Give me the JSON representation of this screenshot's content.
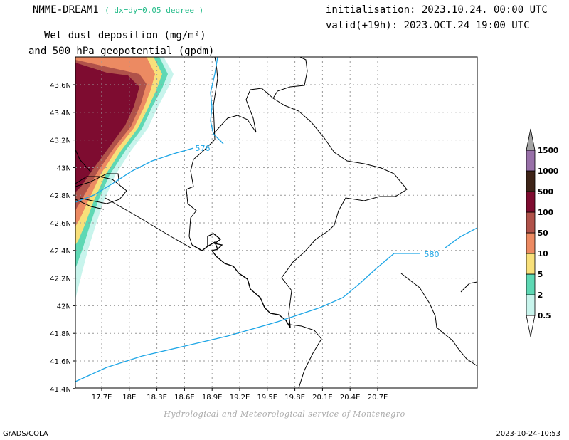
{
  "header": {
    "model": "NMME-DREAM1",
    "resolution": "( dx=dy=0.05 degree )",
    "initialisation": "initialisation: 2023.10.24. 00:00 UTC",
    "valid": "valid(+19h): 2023.OCT.24 19:00 UTC",
    "variable_line1": "Wet dust deposition (mg/m²)",
    "variable_line2": "and 500 hPa geopotential (gpdm)"
  },
  "map": {
    "lon_labels": [
      "17.7E",
      "18E",
      "18.3E",
      "18.6E",
      "18.9E",
      "19.2E",
      "19.5E",
      "19.8E",
      "20.1E",
      "20.4E",
      "20.7E"
    ],
    "lat_labels": [
      "43.6N",
      "43.4N",
      "43.2N",
      "43N",
      "42.8N",
      "42.6N",
      "42.4N",
      "42.2N",
      "42N",
      "41.8N",
      "41.6N",
      "41.4N"
    ],
    "contour_labels": [
      "576",
      "580"
    ],
    "contour_color": "#1ea6e6"
  },
  "legend": {
    "levels": [
      "0.5",
      "2",
      "5",
      "10",
      "50",
      "100",
      "500",
      "1000",
      "1500"
    ],
    "colors": [
      "#c8f4ec",
      "#5ed8b4",
      "#f8e07a",
      "#ec8a62",
      "#b0524a",
      "#7e0c30",
      "#3e2418",
      "#9870a8",
      "#a4a4a4"
    ]
  },
  "footer": {
    "credit": "Hydrological and Meteorological service of Montenegro",
    "left": "GrADS/COLA",
    "right": "2023-10-24-10:53"
  }
}
